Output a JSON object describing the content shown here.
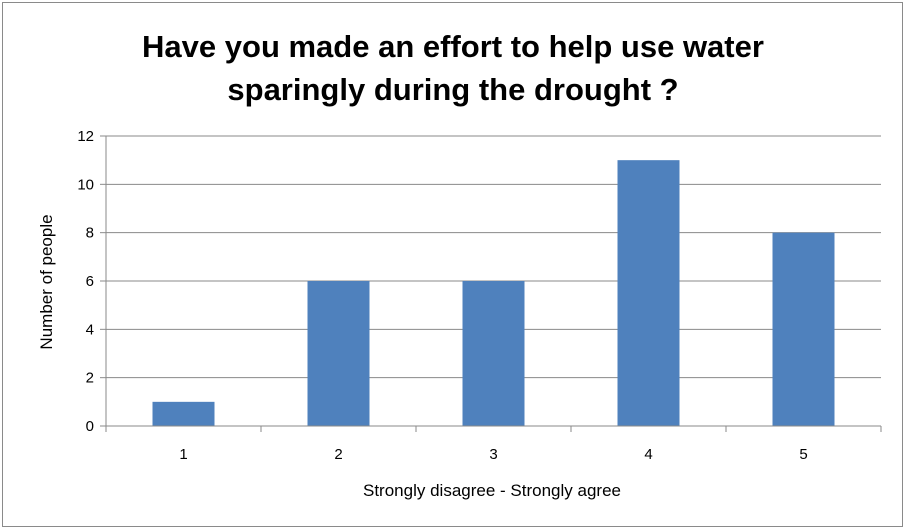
{
  "chart_data": {
    "type": "bar",
    "title_lines": [
      "Have you made an effort to help use water",
      "sparingly during the drought ?"
    ],
    "categories": [
      "1",
      "2",
      "3",
      "4",
      "5"
    ],
    "values": [
      1,
      6,
      6,
      11,
      8
    ],
    "xlabel": "Strongly disagree - Strongly agree",
    "ylabel": "Number of people",
    "ylim": [
      0,
      12
    ],
    "yticks": [
      "0",
      "2",
      "4",
      "6",
      "8",
      "10",
      "12"
    ],
    "grid": true,
    "legend": "none",
    "bar_color": "#4F81BD"
  }
}
